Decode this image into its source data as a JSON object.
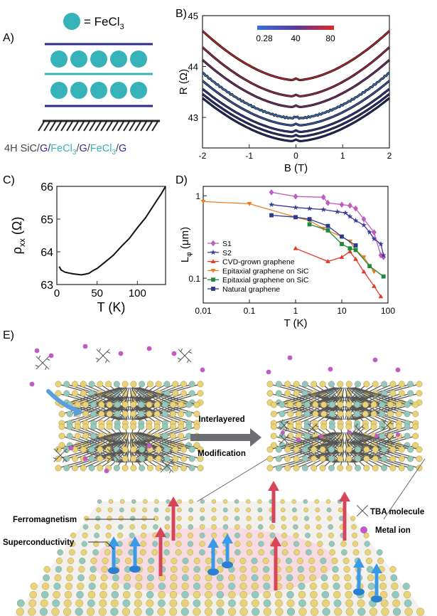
{
  "panels": {
    "a": {
      "label": "A)",
      "legend_eq": "= FeCl",
      "legend_sub": "3",
      "caption_parts": [
        "4H SiC/",
        "G",
        "/",
        "FeCl",
        "3",
        "/",
        "G",
        "/",
        "FeCl",
        "3",
        "/",
        "G"
      ],
      "colors": {
        "feclcircle": "#35b3b8",
        "graphene": "#2d2a8c",
        "feclline": "#35b3b8"
      }
    },
    "b": {
      "label": "B)",
      "colorbar_ticks": [
        "0.28",
        "40",
        "80"
      ]
    },
    "c": {
      "label": "C)"
    },
    "d": {
      "label": "D)"
    },
    "e": {
      "label": "E)",
      "arrow_text_1": "Interlayered",
      "arrow_text_2": "Modification",
      "ferromagnetism": "Ferromagnetism",
      "superconductivity": "Superconductivity",
      "tba_legend": "TBA molecule",
      "ion_legend": "Metal ion"
    }
  },
  "chart_data": [
    {
      "type": "line",
      "panel": "B",
      "xlabel": "B (T)",
      "ylabel": "R (Ω)",
      "xlim": [
        -2,
        2
      ],
      "ylim": [
        42.4,
        45
      ],
      "xticks": [
        -2,
        -1,
        0,
        1,
        2
      ],
      "yticks": [
        43,
        44,
        45
      ],
      "colorbar": {
        "min": 0.28,
        "mid": 40,
        "max": 80
      },
      "series": [
        {
          "R0": 43.73,
          "R2": 44.7,
          "color": "#c0272d"
        },
        {
          "R0": 43.41,
          "R2": 44.38,
          "color": "#a02a4a"
        },
        {
          "R0": 43.2,
          "R2": 44.13,
          "color": "#7a2c6c"
        },
        {
          "R0": 42.98,
          "R2": 43.88,
          "color": "#3a72b8",
          "noisy": true
        },
        {
          "R0": 42.84,
          "R2": 43.72,
          "color": "#3a5aa8"
        },
        {
          "R0": 42.71,
          "R2": 43.56,
          "color": "#2e3a8a"
        },
        {
          "R0": 42.62,
          "R2": 43.46,
          "color": "#2a2f7a"
        },
        {
          "R0": 42.53,
          "R2": 43.38,
          "color": "#222b6a"
        }
      ]
    },
    {
      "type": "line",
      "panel": "C",
      "xlabel": "T (K)",
      "ylabel": "ρxx (Ω)",
      "xlim": [
        0,
        135
      ],
      "ylim": [
        63,
        66
      ],
      "xticks": [
        0,
        50,
        100
      ],
      "yticks": [
        63,
        64,
        65,
        66
      ],
      "x": [
        3,
        5,
        10,
        15,
        20,
        25,
        30,
        35,
        40,
        45,
        50,
        60,
        70,
        80,
        90,
        100,
        110,
        120,
        130,
        135
      ],
      "y": [
        63.55,
        63.45,
        63.38,
        63.35,
        63.33,
        63.31,
        63.3,
        63.31,
        63.35,
        63.42,
        63.5,
        63.68,
        63.9,
        64.15,
        64.42,
        64.72,
        65.05,
        65.4,
        65.8,
        66.0
      ]
    },
    {
      "type": "line",
      "panel": "D",
      "xlabel": "T (K)",
      "ylabel": "Lφ (μm)",
      "xscale": "log",
      "yscale": "log",
      "xlim": [
        0.01,
        100
      ],
      "ylim": [
        0.05,
        1.3
      ],
      "xticks": [
        "0.01",
        "0.1",
        "1",
        "10",
        "100"
      ],
      "yticks": [
        "0.1",
        "1"
      ],
      "series": [
        {
          "name": "S1",
          "color": "#c05cc0",
          "marker": "diamond",
          "x": [
            0.3,
            1,
            4,
            5,
            10,
            15,
            20,
            30,
            50,
            70,
            80
          ],
          "y": [
            1.1,
            0.98,
            0.96,
            0.82,
            0.78,
            0.76,
            0.7,
            0.52,
            0.36,
            0.19,
            0.18
          ]
        },
        {
          "name": "S2",
          "color": "#3a3a9a",
          "marker": "star",
          "x": [
            0.3,
            1,
            2,
            4,
            8,
            12,
            15,
            20,
            30,
            40,
            50,
            70,
            80
          ],
          "y": [
            0.78,
            0.72,
            0.7,
            0.68,
            0.64,
            0.62,
            0.56,
            0.5,
            0.44,
            0.36,
            0.3,
            0.26,
            0.19
          ]
        },
        {
          "name": "CVD-grown graphene",
          "color": "#e03a28",
          "marker": "triangle-up",
          "x": [
            1,
            5,
            10,
            15,
            20,
            30,
            50,
            70
          ],
          "y": [
            0.23,
            0.16,
            0.18,
            0.21,
            0.17,
            0.12,
            0.08,
            0.06
          ]
        },
        {
          "name": "Epitaxial graphene on SiC",
          "color": "#f07a20",
          "marker": "triangle-down",
          "x": [
            0.01,
            0.1,
            1,
            2,
            4,
            10,
            15,
            20,
            30,
            50
          ],
          "y": [
            0.85,
            0.8,
            0.55,
            0.5,
            0.4,
            0.32,
            0.28,
            0.22,
            0.18,
            0.12
          ]
        },
        {
          "name": "Epitaxial graphene on SiC",
          "color": "#1e8a3a",
          "marker": "square",
          "x": [
            2,
            5,
            10,
            15,
            20,
            40,
            80
          ],
          "y": [
            0.45,
            0.38,
            0.26,
            0.23,
            0.22,
            0.14,
            0.105
          ]
        },
        {
          "name": "Natural graphene",
          "color": "#2a3a8a",
          "marker": "square",
          "x": [
            0.3,
            1,
            2,
            5,
            10,
            20
          ],
          "y": [
            0.58,
            0.55,
            0.52,
            0.43,
            0.32,
            0.25
          ]
        }
      ]
    }
  ]
}
